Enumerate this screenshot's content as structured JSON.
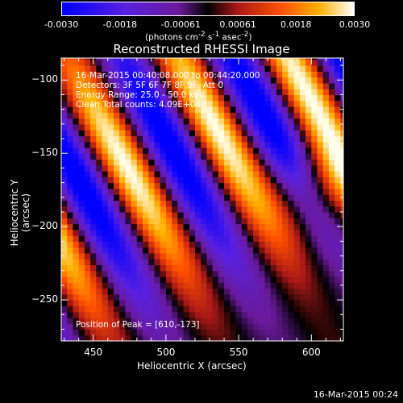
{
  "chart_data": {
    "type": "heatmap",
    "title": "Reconstructed RHESSI Image",
    "xlabel": "Heliocentric X (arcsec)",
    "ylabel": "Heliocentric Y (arcsec)",
    "xlim": [
      428,
      622
    ],
    "ylim": [
      -278,
      -85
    ],
    "xticks": [
      450,
      500,
      550,
      600
    ],
    "yticks": [
      -100,
      -150,
      -200,
      -250
    ],
    "colorbar": {
      "ticks": [
        "-0.0030",
        "-0.0018",
        "-0.00061",
        "0.00061",
        "0.0018",
        "0.0030"
      ],
      "unit": "(photons cm",
      "unit_sup1": "-2",
      "unit_mid": " s",
      "unit_sup2": "-1",
      "unit_end": " asec",
      "unit_sup3": "-2",
      "unit_close": ")",
      "range": [
        -0.003,
        0.003
      ]
    },
    "annotations": [
      "16-Mar-2015 00:40:08.000 to 00:44:20.000",
      "Detectors: 3F 5F 6F 7F 8F 9F, Att 0",
      "Energy Range: 25.0 - 50.0 keV",
      "Clean     Total counts: 4.09E+04"
    ],
    "peak_text": "Position of Peak = [610,-173]",
    "peak_position": [
      610,
      -173
    ],
    "footer": "16-Mar-2015 00:24"
  }
}
